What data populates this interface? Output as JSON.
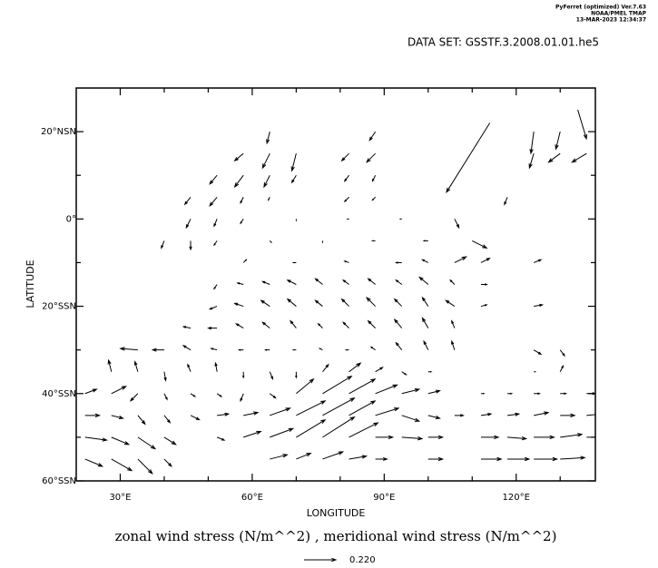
{
  "header": {
    "lines": [
      "PyFerret (optimized) Ver.7.63",
      "NOAA/PMEL TMAP",
      "13-MAR-2023 12:34:37"
    ],
    "dataset": "DATA SET: GSSTF.3.2008.01.01.he5"
  },
  "chart_data": {
    "type": "vector",
    "x_label": "LONGITUDE",
    "y_label": "LATITUDE",
    "caption": "zonal wind stress (N/m^^2) , meridional wind stress (N/m^^2)",
    "reference_vector": {
      "value": 0.22,
      "label": "0.220"
    },
    "xlim": [
      20,
      138
    ],
    "ylim": [
      -60,
      30
    ],
    "xticks": [
      {
        "value": 30,
        "label": "30°E"
      },
      {
        "value": 60,
        "label": "60°E"
      },
      {
        "value": 90,
        "label": "90°E"
      },
      {
        "value": 120,
        "label": "120°E"
      }
    ],
    "xminorticks": [
      40,
      50,
      70,
      80,
      100,
      110,
      130
    ],
    "yticks": [
      {
        "value": 20,
        "label": "20°NSN"
      },
      {
        "value": 0,
        "label": "0°"
      },
      {
        "value": -20,
        "label": "20°SSN"
      },
      {
        "value": -40,
        "label": "40°SSN"
      },
      {
        "value": -60,
        "label": "60°SSN"
      }
    ],
    "yminorticks": [
      10,
      -10,
      -30,
      -50
    ],
    "color": "#000000",
    "points": [
      [
        64,
        20,
        -0.02,
        -0.08
      ],
      [
        88,
        20,
        -0.04,
        -0.06
      ],
      [
        124,
        20,
        -0.02,
        -0.15
      ],
      [
        130,
        20,
        -0.03,
        -0.12
      ],
      [
        134,
        25,
        0.06,
        -0.2
      ],
      [
        114,
        22,
        -0.3,
        -0.48
      ],
      [
        58,
        15,
        -0.06,
        -0.05
      ],
      [
        64,
        15,
        -0.05,
        -0.1
      ],
      [
        70,
        15,
        -0.03,
        -0.12
      ],
      [
        82,
        15,
        -0.05,
        -0.05
      ],
      [
        88,
        15,
        -0.06,
        -0.06
      ],
      [
        124,
        15,
        -0.03,
        -0.1
      ],
      [
        130,
        15,
        -0.08,
        -0.06
      ],
      [
        136,
        15,
        -0.1,
        -0.06
      ],
      [
        52,
        10,
        -0.05,
        -0.06
      ],
      [
        58,
        10,
        -0.06,
        -0.08
      ],
      [
        64,
        10,
        -0.04,
        -0.08
      ],
      [
        70,
        10,
        -0.03,
        -0.05
      ],
      [
        82,
        10,
        -0.03,
        -0.04
      ],
      [
        88,
        10,
        -0.02,
        -0.04
      ],
      [
        46,
        5,
        -0.04,
        -0.05
      ],
      [
        52,
        5,
        -0.05,
        -0.06
      ],
      [
        58,
        5,
        -0.02,
        -0.04
      ],
      [
        64,
        5,
        -0.01,
        -0.02
      ],
      [
        82,
        5,
        -0.03,
        -0.03
      ],
      [
        88,
        5,
        -0.02,
        -0.02
      ],
      [
        118,
        5,
        -0.02,
        -0.05
      ],
      [
        46,
        0,
        -0.03,
        -0.06
      ],
      [
        52,
        0,
        -0.02,
        -0.05
      ],
      [
        58,
        0,
        -0.02,
        -0.03
      ],
      [
        70,
        0,
        0.0,
        -0.01
      ],
      [
        82,
        0,
        -0.01,
        0.0
      ],
      [
        94,
        0,
        -0.01,
        0.0
      ],
      [
        106,
        0,
        0.03,
        -0.06
      ],
      [
        40,
        -5,
        -0.02,
        -0.05
      ],
      [
        46,
        -5,
        0.0,
        -0.06
      ],
      [
        52,
        -5,
        -0.02,
        -0.03
      ],
      [
        64,
        -5,
        0.01,
        -0.01
      ],
      [
        76,
        -5,
        0.0,
        -0.01
      ],
      [
        88,
        -5,
        -0.02,
        0.0
      ],
      [
        100,
        -5,
        -0.03,
        0.0
      ],
      [
        110,
        -5,
        0.1,
        -0.05
      ],
      [
        58,
        -10,
        0.02,
        0.02
      ],
      [
        70,
        -10,
        -0.02,
        0.0
      ],
      [
        82,
        -10,
        -0.03,
        0.01
      ],
      [
        94,
        -10,
        -0.04,
        0.0
      ],
      [
        100,
        -10,
        -0.04,
        0.02
      ],
      [
        106,
        -10,
        0.08,
        0.04
      ],
      [
        112,
        -10,
        0.06,
        0.03
      ],
      [
        124,
        -10,
        0.05,
        0.02
      ],
      [
        52,
        -15,
        -0.02,
        -0.03
      ],
      [
        58,
        -15,
        -0.04,
        0.01
      ],
      [
        64,
        -15,
        -0.05,
        0.02
      ],
      [
        70,
        -15,
        -0.06,
        0.03
      ],
      [
        76,
        -15,
        -0.05,
        0.04
      ],
      [
        82,
        -15,
        -0.04,
        0.03
      ],
      [
        88,
        -15,
        -0.05,
        0.04
      ],
      [
        94,
        -15,
        -0.04,
        0.03
      ],
      [
        100,
        -15,
        -0.06,
        0.05
      ],
      [
        106,
        -15,
        -0.03,
        0.03
      ],
      [
        112,
        -15,
        0.04,
        0.0
      ],
      [
        52,
        -20,
        -0.05,
        -0.02
      ],
      [
        58,
        -20,
        -0.06,
        0.02
      ],
      [
        64,
        -20,
        -0.06,
        0.04
      ],
      [
        70,
        -20,
        -0.06,
        0.05
      ],
      [
        76,
        -20,
        -0.05,
        0.04
      ],
      [
        82,
        -20,
        -0.05,
        0.05
      ],
      [
        88,
        -20,
        -0.06,
        0.06
      ],
      [
        94,
        -20,
        -0.05,
        0.05
      ],
      [
        100,
        -20,
        -0.04,
        0.06
      ],
      [
        106,
        -20,
        -0.06,
        0.04
      ],
      [
        112,
        -20,
        0.04,
        0.01
      ],
      [
        124,
        -20,
        0.06,
        0.01
      ],
      [
        46,
        -25,
        -0.05,
        0.01
      ],
      [
        52,
        -25,
        -0.06,
        0.0
      ],
      [
        58,
        -25,
        -0.05,
        0.03
      ],
      [
        64,
        -25,
        -0.05,
        0.04
      ],
      [
        70,
        -25,
        -0.04,
        0.05
      ],
      [
        76,
        -25,
        -0.03,
        0.03
      ],
      [
        82,
        -25,
        -0.04,
        0.04
      ],
      [
        88,
        -25,
        -0.05,
        0.05
      ],
      [
        94,
        -25,
        -0.05,
        0.06
      ],
      [
        100,
        -25,
        -0.04,
        0.07
      ],
      [
        106,
        -25,
        -0.02,
        0.05
      ],
      [
        34,
        -30,
        -0.12,
        0.01
      ],
      [
        40,
        -30,
        -0.08,
        0.0
      ],
      [
        46,
        -30,
        -0.05,
        0.03
      ],
      [
        52,
        -30,
        -0.04,
        0.01
      ],
      [
        58,
        -30,
        -0.03,
        0.0
      ],
      [
        64,
        -30,
        -0.03,
        0.0
      ],
      [
        70,
        -30,
        -0.02,
        0.0
      ],
      [
        76,
        -30,
        -0.02,
        0.01
      ],
      [
        82,
        -30,
        -0.02,
        0.0
      ],
      [
        88,
        -30,
        -0.03,
        0.02
      ],
      [
        94,
        -30,
        -0.04,
        0.05
      ],
      [
        100,
        -30,
        -0.03,
        0.06
      ],
      [
        106,
        -30,
        -0.02,
        0.06
      ],
      [
        124,
        -30,
        0.05,
        -0.03
      ],
      [
        130,
        -30,
        0.03,
        -0.04
      ],
      [
        28,
        -35,
        -0.02,
        0.08
      ],
      [
        34,
        -35,
        -0.02,
        0.07
      ],
      [
        40,
        -35,
        0.01,
        -0.06
      ],
      [
        46,
        -35,
        -0.02,
        0.05
      ],
      [
        52,
        -35,
        -0.01,
        0.06
      ],
      [
        58,
        -35,
        0.0,
        -0.04
      ],
      [
        64,
        -35,
        0.02,
        -0.05
      ],
      [
        70,
        -35,
        0.0,
        -0.04
      ],
      [
        76,
        -35,
        0.04,
        0.05
      ],
      [
        82,
        -35,
        0.08,
        0.06
      ],
      [
        88,
        -35,
        0.05,
        0.03
      ],
      [
        94,
        -35,
        0.03,
        -0.02
      ],
      [
        100,
        -35,
        0.02,
        0.0
      ],
      [
        124,
        -35,
        0.01,
        0.0
      ],
      [
        130,
        -35,
        0.02,
        0.04
      ],
      [
        22,
        -40,
        0.08,
        0.03
      ],
      [
        28,
        -40,
        0.1,
        0.05
      ],
      [
        34,
        -40,
        -0.05,
        -0.05
      ],
      [
        40,
        -40,
        0.02,
        -0.04
      ],
      [
        46,
        -40,
        0.03,
        -0.02
      ],
      [
        52,
        -40,
        0.03,
        -0.02
      ],
      [
        58,
        -40,
        -0.02,
        -0.05
      ],
      [
        64,
        -40,
        0.04,
        -0.03
      ],
      [
        70,
        -40,
        0.12,
        0.1
      ],
      [
        76,
        -40,
        0.2,
        0.12
      ],
      [
        82,
        -40,
        0.18,
        0.1
      ],
      [
        88,
        -40,
        0.15,
        0.06
      ],
      [
        94,
        -40,
        0.12,
        0.03
      ],
      [
        100,
        -40,
        0.08,
        0.02
      ],
      [
        112,
        -40,
        0.02,
        0.0
      ],
      [
        118,
        -40,
        0.03,
        0.0
      ],
      [
        124,
        -40,
        0.04,
        0.0
      ],
      [
        130,
        -40,
        0.04,
        0.0
      ],
      [
        136,
        -40,
        0.06,
        0.0
      ],
      [
        22,
        -45,
        0.1,
        0.0
      ],
      [
        28,
        -45,
        0.08,
        -0.02
      ],
      [
        34,
        -45,
        0.05,
        -0.06
      ],
      [
        40,
        -45,
        0.04,
        -0.05
      ],
      [
        46,
        -45,
        0.06,
        -0.03
      ],
      [
        52,
        -45,
        0.08,
        0.01
      ],
      [
        58,
        -45,
        0.1,
        0.02
      ],
      [
        64,
        -45,
        0.14,
        0.05
      ],
      [
        70,
        -45,
        0.2,
        0.1
      ],
      [
        76,
        -45,
        0.22,
        0.12
      ],
      [
        82,
        -45,
        0.18,
        0.1
      ],
      [
        88,
        -45,
        0.16,
        0.05
      ],
      [
        94,
        -45,
        0.12,
        -0.04
      ],
      [
        100,
        -45,
        0.08,
        -0.02
      ],
      [
        106,
        -45,
        0.06,
        0.0
      ],
      [
        112,
        -45,
        0.07,
        0.01
      ],
      [
        118,
        -45,
        0.08,
        0.01
      ],
      [
        124,
        -45,
        0.1,
        0.02
      ],
      [
        130,
        -45,
        0.1,
        0.0
      ],
      [
        136,
        -45,
        0.1,
        0.01
      ],
      [
        22,
        -50,
        0.15,
        -0.02
      ],
      [
        28,
        -50,
        0.12,
        -0.05
      ],
      [
        34,
        -50,
        0.12,
        -0.08
      ],
      [
        40,
        -50,
        0.08,
        -0.05
      ],
      [
        52,
        -50,
        0.05,
        -0.02
      ],
      [
        58,
        -50,
        0.12,
        0.04
      ],
      [
        64,
        -50,
        0.16,
        0.06
      ],
      [
        70,
        -50,
        0.2,
        0.12
      ],
      [
        76,
        -50,
        0.22,
        0.14
      ],
      [
        82,
        -50,
        0.2,
        0.1
      ],
      [
        88,
        -50,
        0.12,
        0.0
      ],
      [
        94,
        -50,
        0.14,
        -0.01
      ],
      [
        100,
        -50,
        0.1,
        0.0
      ],
      [
        112,
        -50,
        0.12,
        0.0
      ],
      [
        118,
        -50,
        0.13,
        -0.01
      ],
      [
        124,
        -50,
        0.14,
        0.0
      ],
      [
        130,
        -50,
        0.15,
        0.02
      ],
      [
        136,
        -50,
        0.12,
        0.0
      ],
      [
        22,
        -55,
        0.12,
        -0.05
      ],
      [
        28,
        -55,
        0.14,
        -0.08
      ],
      [
        34,
        -55,
        0.1,
        -0.1
      ],
      [
        40,
        -55,
        0.05,
        -0.05
      ],
      [
        64,
        -55,
        0.12,
        0.03
      ],
      [
        70,
        -55,
        0.1,
        0.04
      ],
      [
        76,
        -55,
        0.14,
        0.05
      ],
      [
        82,
        -55,
        0.12,
        0.02
      ],
      [
        88,
        -55,
        0.08,
        0.0
      ],
      [
        100,
        -55,
        0.1,
        0.0
      ],
      [
        112,
        -55,
        0.14,
        0.0
      ],
      [
        118,
        -55,
        0.15,
        0.0
      ],
      [
        124,
        -55,
        0.16,
        0.0
      ],
      [
        130,
        -55,
        0.17,
        0.01
      ]
    ]
  }
}
